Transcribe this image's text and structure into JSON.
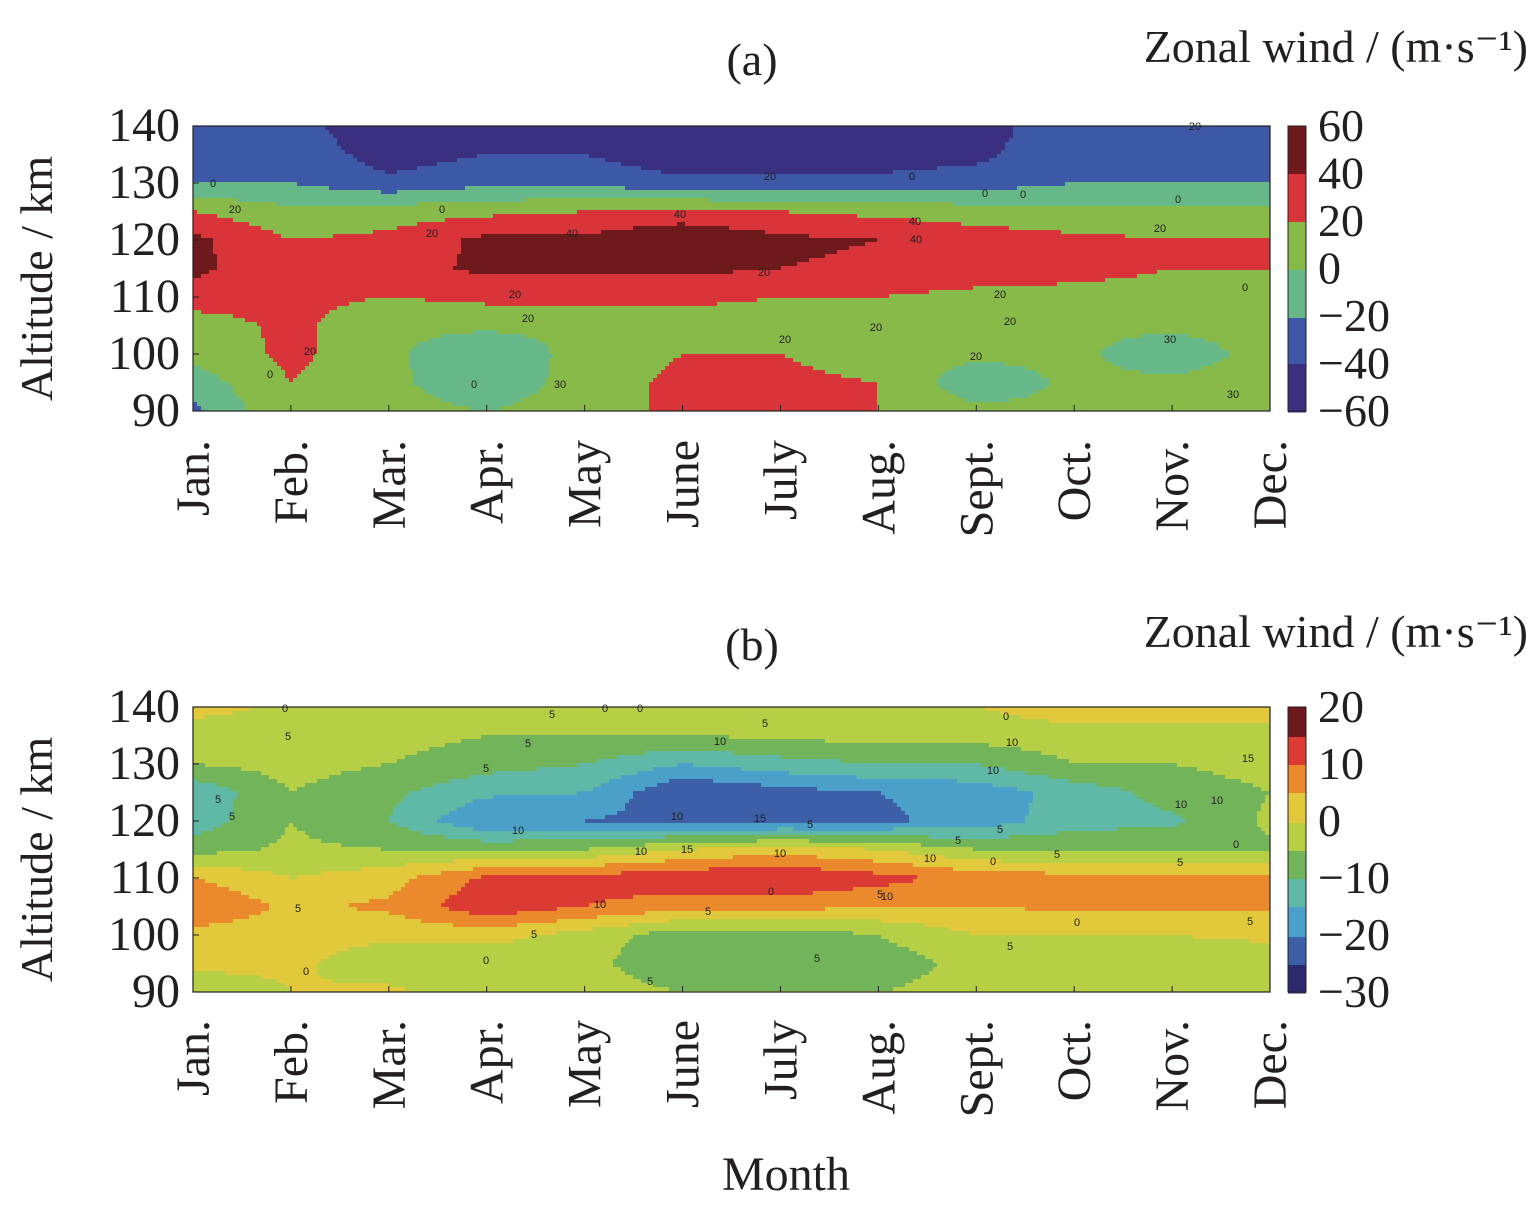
{
  "x_label": "Month",
  "chart_data": [
    {
      "type": "heatmap",
      "panel_label": "(a)",
      "colorbar_title": "Zonal wind / (m·s⁻¹)",
      "ylabel": "Altitude / km",
      "xlabel": "Month",
      "categories": [
        "Jan.",
        "Feb.",
        "Mar.",
        "Apr.",
        "May",
        "June",
        "July",
        "Aug.",
        "Sept.",
        "Oct.",
        "Nov.",
        "Dec."
      ],
      "y_ticks": [
        90,
        100,
        110,
        120,
        130,
        140
      ],
      "ylim": [
        90,
        140
      ],
      "colorbar_ticks": [
        60,
        40,
        20,
        0,
        "−20",
        "−40",
        "−60"
      ],
      "vlim": [
        -60,
        60
      ],
      "contour_interval": 20,
      "altitudes": [
        90,
        95,
        100,
        105,
        110,
        115,
        120,
        125,
        130,
        135,
        140
      ],
      "values": [
        [
          -25,
          20,
          8,
          0,
          10,
          25,
          25,
          20,
          5,
          5,
          5,
          20
        ],
        [
          -10,
          20,
          5,
          -15,
          10,
          25,
          25,
          20,
          -15,
          5,
          5,
          15
        ],
        [
          5,
          25,
          5,
          -20,
          10,
          20,
          20,
          10,
          5,
          5,
          -15,
          10
        ],
        [
          10,
          25,
          5,
          5,
          5,
          10,
          10,
          5,
          5,
          5,
          5,
          10
        ],
        [
          30,
          25,
          20,
          25,
          25,
          25,
          20,
          20,
          15,
          15,
          15,
          15
        ],
        [
          45,
          25,
          30,
          45,
          45,
          45,
          40,
          35,
          30,
          25,
          20,
          20
        ],
        [
          45,
          20,
          25,
          45,
          45,
          60,
          45,
          40,
          30,
          25,
          20,
          20
        ],
        [
          20,
          5,
          10,
          15,
          20,
          25,
          20,
          15,
          10,
          5,
          5,
          5
        ],
        [
          -20,
          -20,
          -35,
          -25,
          -25,
          -35,
          -35,
          -35,
          -30,
          -20,
          -20,
          -20
        ],
        [
          -20,
          -25,
          -50,
          -40,
          -40,
          -55,
          -55,
          -50,
          -45,
          -25,
          -20,
          -30
        ],
        [
          -20,
          -30,
          -60,
          -50,
          -45,
          -60,
          -60,
          -55,
          -50,
          -25,
          -20,
          -40
        ]
      ],
      "contour_labels": [
        "0",
        "20",
        "20",
        "0",
        "40",
        "40",
        "20",
        "20",
        "40",
        "40",
        "20",
        "20",
        "0",
        "30",
        "20",
        "20",
        "20",
        "0",
        "30",
        "30",
        "0",
        "0",
        "20",
        "0",
        "0",
        "20",
        "20",
        "20",
        "20",
        "0"
      ],
      "colors": [
        "#3b2f80",
        "#3d58a7",
        "#4a9cd8",
        "#67b889",
        "#88ba4a",
        "#e6a832",
        "#d8343a",
        "#6e1a1c"
      ]
    },
    {
      "type": "heatmap",
      "panel_label": "(b)",
      "colorbar_title": "Zonal wind / (m·s⁻¹)",
      "ylabel": "Altitude / km",
      "xlabel": "Month",
      "categories": [
        "Jan.",
        "Feb.",
        "Mar.",
        "Apr.",
        "May",
        "June",
        "July",
        "Aug.",
        "Sept.",
        "Oct.",
        "Nov.",
        "Dec."
      ],
      "y_ticks": [
        90,
        100,
        110,
        120,
        130,
        140
      ],
      "ylim": [
        90,
        140
      ],
      "colorbar_ticks": [
        20,
        10,
        0,
        "−10",
        "−20",
        "−30"
      ],
      "vlim": [
        -30,
        20
      ],
      "contour_interval": 5,
      "altitudes": [
        90,
        95,
        100,
        105,
        110,
        115,
        120,
        125,
        130,
        135,
        140
      ],
      "values": [
        [
          -5,
          0,
          1,
          -3,
          -2,
          -5,
          -5,
          -5,
          -3,
          -3,
          -2,
          -3
        ],
        [
          2,
          1,
          -3,
          -4,
          -3,
          -10,
          -10,
          -8,
          -3,
          -2,
          -3,
          -3
        ],
        [
          3,
          2,
          1,
          2,
          -2,
          -8,
          -8,
          -5,
          0,
          0,
          0,
          1
        ],
        [
          10,
          4,
          6,
          14,
          10,
          7,
          7,
          5,
          5,
          6,
          6,
          6
        ],
        [
          5,
          0,
          3,
          11,
          12,
          14,
          15,
          12,
          8,
          7,
          6,
          6
        ],
        [
          -7,
          -4,
          -5,
          -6,
          -5,
          0,
          3,
          0,
          -5,
          -6,
          -6,
          -6
        ],
        [
          -13,
          -5,
          -10,
          -20,
          -20,
          -22,
          -22,
          -21,
          -18,
          -12,
          -11,
          -4
        ],
        [
          -14,
          -5,
          -9,
          -14,
          -15,
          -25,
          -22,
          -20,
          -18,
          -13,
          -8,
          -5
        ],
        [
          -5,
          -3,
          -5,
          -8,
          -10,
          -15,
          -12,
          -10,
          -10,
          -5,
          -5,
          -3
        ],
        [
          -3,
          -3,
          -3,
          -5,
          -5,
          -5,
          -4,
          -3,
          -3,
          -2,
          -2,
          -2
        ],
        [
          2,
          -1,
          0,
          0,
          -1,
          0,
          0,
          0,
          0,
          3,
          3,
          3
        ]
      ],
      "contour_labels": [
        "0",
        "5",
        "5",
        "5",
        "0",
        "5",
        "10",
        "5",
        "10",
        "10",
        "0",
        "5",
        "10",
        "5",
        "10",
        "15",
        "10",
        "15",
        "10",
        "10",
        "10",
        "5",
        "0",
        "5",
        "5",
        "0",
        "5",
        "15",
        "10",
        "10",
        "5",
        "0",
        "5",
        "10",
        "5",
        "0",
        "5",
        "5",
        "0",
        "5",
        "5",
        "0",
        "5",
        "5",
        "0"
      ],
      "colors": [
        "#2b2a6e",
        "#3d5fa8",
        "#4aa0c8",
        "#5fb9a6",
        "#72b45a",
        "#b7cf45",
        "#e1c93b",
        "#ea8a2c",
        "#dc3b34",
        "#6e1a1c"
      ]
    }
  ]
}
